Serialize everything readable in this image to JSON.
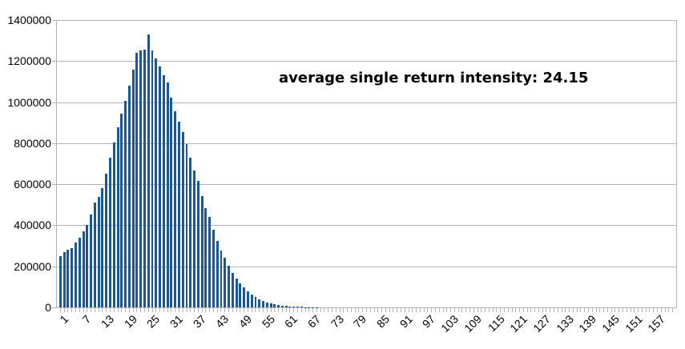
{
  "page": {
    "background_color": "#ffffff"
  },
  "chart_data": {
    "type": "bar",
    "title": "",
    "annotation": "average single return intensity: 24.15",
    "legend_position": "none",
    "grid": "horizontal",
    "x_axis": {
      "label": "",
      "num_categories": 161,
      "first_category": 1,
      "tick_interval": 1,
      "label_interval": 6,
      "tick_labels": [
        1,
        7,
        13,
        19,
        25,
        31,
        37,
        43,
        49,
        55,
        61,
        67,
        73,
        79,
        85,
        91,
        97,
        103,
        109,
        115,
        121,
        127,
        133,
        139,
        145,
        151,
        157
      ],
      "label_rotation_deg": 45
    },
    "y_axis": {
      "label": "",
      "min": 0,
      "max": 1400000,
      "tick_step": 200000,
      "tick_labels": [
        "0",
        "200000",
        "400000",
        "600000",
        "800000",
        "1000000",
        "1200000",
        "1400000"
      ]
    },
    "values": [
      250000,
      268000,
      280000,
      287000,
      317000,
      340000,
      372000,
      400000,
      452000,
      512000,
      538000,
      582000,
      650000,
      728000,
      805000,
      878000,
      945000,
      1008000,
      1080000,
      1158000,
      1240000,
      1252000,
      1256000,
      1330000,
      1250000,
      1212000,
      1172000,
      1132000,
      1094000,
      1022000,
      956000,
      905000,
      855000,
      795000,
      730000,
      666000,
      618000,
      542000,
      484000,
      440000,
      379000,
      325000,
      275000,
      240000,
      203000,
      168000,
      140000,
      116000,
      96000,
      79000,
      64000,
      51000,
      40000,
      32000,
      25000,
      19000,
      14000,
      11000,
      8000,
      6000,
      5000,
      4000,
      3000,
      2500,
      2000,
      1500,
      1000,
      700,
      0,
      0,
      0,
      0,
      0,
      0,
      0,
      0,
      0,
      0,
      0,
      0,
      0,
      0,
      0,
      0,
      0,
      0,
      0,
      0,
      0,
      0,
      0,
      0,
      0,
      0,
      0,
      0,
      0,
      0,
      0,
      0,
      0,
      0,
      0,
      0,
      0,
      0,
      0,
      0,
      0,
      0,
      0,
      0,
      0,
      0,
      0,
      0,
      0,
      0,
      0,
      0,
      0,
      0,
      0,
      0,
      0,
      0,
      0,
      0,
      0,
      0,
      0,
      0,
      0,
      0,
      0,
      0,
      0,
      0,
      0,
      0,
      0,
      0,
      0,
      0,
      0,
      0,
      0,
      0,
      0,
      0,
      0,
      0,
      0,
      0,
      0,
      0,
      0,
      0,
      0,
      0,
      0
    ],
    "styles": {
      "bar_color": "#1a5795",
      "grid_color": "#b3b3b3",
      "axis_color": "#b3b3b3",
      "text_color": "#000000"
    }
  }
}
